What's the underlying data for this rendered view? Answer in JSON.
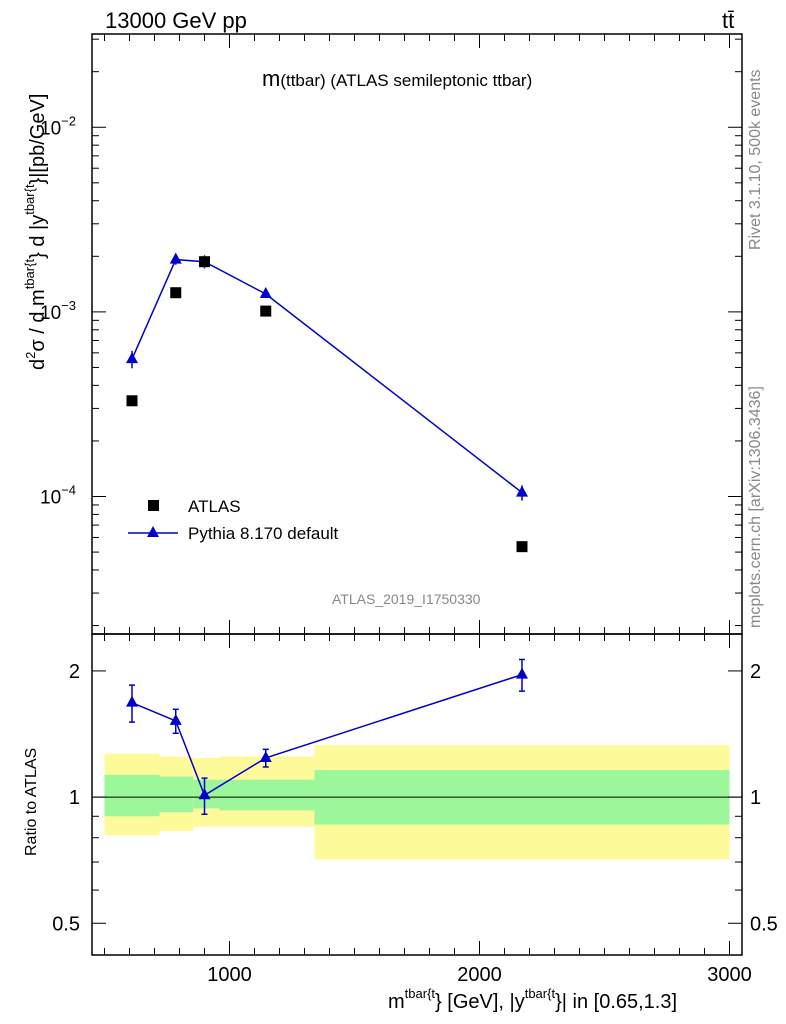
{
  "header": {
    "left": "13000 GeV pp",
    "right": "tt̄"
  },
  "side_labels": {
    "rivet": "Rivet 3.1.10,  500k events",
    "mcplots": "mcplots.cern.ch [arXiv:1306.3436]"
  },
  "chart_data": [
    {
      "type": "scatter",
      "title": "m(ttbar) (ATLAS semileptonic ttbar)",
      "title_parts": {
        "main": "m",
        "rest": "(ttbar) (ATLAS semileptonic ttbar)"
      },
      "watermark": "ATLAS_2019_I1750330",
      "ylabel": "d²σ / d m^{tbar{t}} d |y^{tbar{t}}|[pb/GeV]",
      "ylabel_parts": [
        "d",
        "2",
        "σ / d m",
        "tbar{t",
        "} d |y",
        "tbar{t",
        "}|[pb/GeV]"
      ],
      "yscale": "log",
      "xlim": [
        450,
        3050
      ],
      "ylim": [
        1.8e-05,
        0.032
      ],
      "y_ticks": [
        {
          "value": 0.01,
          "base": "10",
          "exp": "−2"
        },
        {
          "value": 0.001,
          "base": "10",
          "exp": "−3"
        },
        {
          "value": 0.0001,
          "base": "10",
          "exp": "−4"
        }
      ],
      "legend_position": "bottom-left",
      "series": [
        {
          "name": "ATLAS",
          "style": "square-marker",
          "color": "#000000",
          "x": [
            610,
            785,
            900,
            1145,
            2170
          ],
          "y": [
            0.00033,
            0.00127,
            0.00187,
            0.00101,
            5.35e-05
          ]
        },
        {
          "name": "Pythia 8.170 default",
          "style": "line-triangle",
          "color": "#0000cc",
          "x": [
            610,
            785,
            900,
            1145,
            2170
          ],
          "y": [
            0.000555,
            0.00192,
            0.00187,
            0.00125,
            0.000105
          ],
          "y_err": [
            6e-05,
            0.00012,
            0.00015,
            6e-05,
            1e-05
          ]
        }
      ]
    },
    {
      "type": "scatter",
      "ylabel": "Ratio to ATLAS",
      "xlabel_parts": [
        "m",
        "tbar{t",
        "} [GeV], |y",
        "tbar{t",
        "}| in [0.65,1.3]"
      ],
      "yscale": "log",
      "xlim": [
        450,
        3050
      ],
      "ylim": [
        0.42,
        2.45
      ],
      "x_ticks": [
        {
          "value": 1000,
          "label": "1000"
        },
        {
          "value": 2000,
          "label": "2000"
        },
        {
          "value": 3000,
          "label": "3000"
        }
      ],
      "y_ticks": [
        {
          "value": 0.5,
          "label": "0.5"
        },
        {
          "value": 1,
          "label": "1"
        },
        {
          "value": 2,
          "label": "2"
        }
      ],
      "uncertainty_bands": [
        {
          "x0": 500,
          "x1": 720,
          "inner": [
            0.9,
            1.13
          ],
          "outer": [
            0.81,
            1.27
          ]
        },
        {
          "x0": 720,
          "x1": 855,
          "inner": [
            0.92,
            1.12
          ],
          "outer": [
            0.83,
            1.25
          ]
        },
        {
          "x0": 855,
          "x1": 960,
          "inner": [
            0.94,
            1.1
          ],
          "outer": [
            0.85,
            1.24
          ]
        },
        {
          "x0": 960,
          "x1": 1340,
          "inner": [
            0.93,
            1.1
          ],
          "outer": [
            0.85,
            1.25
          ]
        },
        {
          "x0": 1340,
          "x1": 3000,
          "inner": [
            0.86,
            1.16
          ],
          "outer": [
            0.71,
            1.33
          ]
        }
      ],
      "band_colors": {
        "inner": "#9cf79a",
        "outer": "#fdfa9a"
      },
      "series": [
        {
          "name": "Pythia 8.170 default",
          "color": "#0000cc",
          "x": [
            610,
            785,
            900,
            1145,
            2170
          ],
          "y": [
            1.68,
            1.52,
            1.01,
            1.24,
            1.96
          ],
          "y_err": [
            0.17,
            0.1,
            0.1,
            0.06,
            0.17
          ]
        }
      ]
    }
  ]
}
